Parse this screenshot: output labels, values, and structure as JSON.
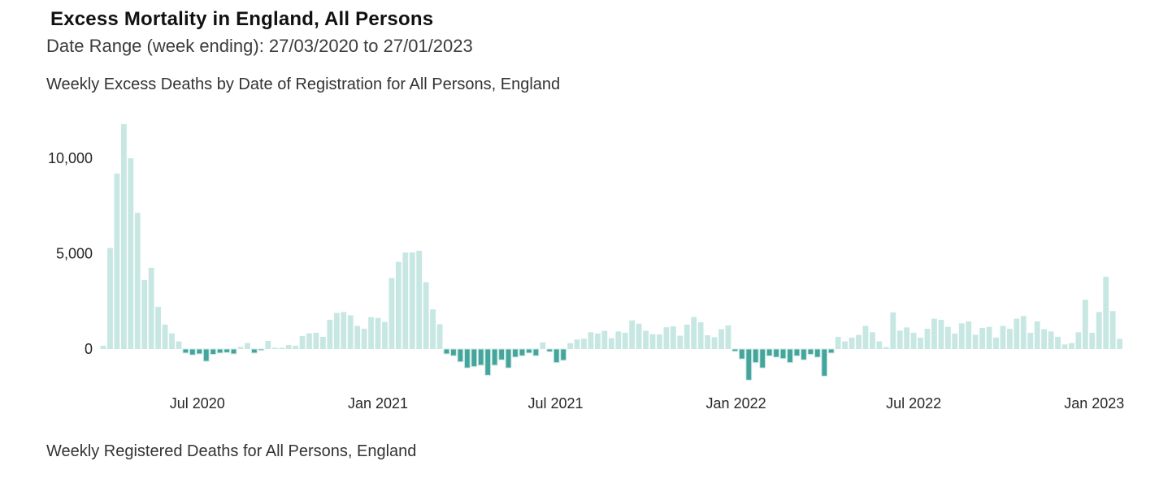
{
  "header": {
    "title": "Excess Mortality in England, All Persons",
    "date_range": "Date Range (week ending): 27/03/2020 to 27/01/2023"
  },
  "sections": {
    "excess_chart_title": "Weekly Excess Deaths by Date of Registration for All Persons, England",
    "registered_chart_title": "Weekly Registered Deaths for All Persons, England"
  },
  "colors": {
    "positive_bar": "#c7e7e3",
    "negative_bar": "#44a59c",
    "negative_bar_outline": "#cfe9e5",
    "axis_text": "#262626",
    "background": "#ffffff"
  },
  "chart_data": {
    "type": "bar",
    "title": "Weekly Excess Deaths by Date of Registration for All Persons, England",
    "x_axis": {
      "start_week_ending": "27/03/2020",
      "end_week_ending": "27/01/2023",
      "frequency": "weekly",
      "num_weeks": 149,
      "tick_labels": [
        "Jul 2020",
        "Jan 2021",
        "Jul 2021",
        "Jan 2022",
        "Jul 2022",
        "Jan 2023"
      ],
      "tick_week_offsets": [
        13.71,
        40.0,
        65.86,
        92.14,
        118.0,
        144.29
      ]
    },
    "y_axis": {
      "label": "",
      "ticks": [
        {
          "value": 0,
          "label": "0"
        },
        {
          "value": 5000,
          "label": "5,000"
        },
        {
          "value": 10000,
          "label": "10,000"
        }
      ],
      "ylim": [
        -2000,
        12000
      ]
    },
    "grid": false,
    "legend": false,
    "values": [
      170,
      5300,
      9200,
      11790,
      10000,
      7140,
      3620,
      4260,
      2210,
      1280,
      820,
      400,
      -210,
      -310,
      -255,
      -640,
      -280,
      -210,
      -185,
      -255,
      110,
      310,
      -210,
      -70,
      425,
      70,
      70,
      210,
      170,
      680,
      820,
      850,
      640,
      1530,
      1890,
      1940,
      1770,
      1210,
      1060,
      1670,
      1630,
      1420,
      3720,
      4570,
      5060,
      5060,
      5150,
      3500,
      2080,
      1300,
      -255,
      -355,
      -670,
      -990,
      -920,
      -850,
      -1375,
      -850,
      -570,
      -990,
      -425,
      -355,
      -210,
      -355,
      350,
      -140,
      -710,
      -595,
      310,
      500,
      540,
      880,
      810,
      950,
      570,
      920,
      850,
      1500,
      1330,
      960,
      780,
      770,
      1140,
      1190,
      700,
      1280,
      1680,
      1400,
      720,
      620,
      1040,
      1230,
      -120,
      -520,
      -1630,
      -710,
      -990,
      -360,
      -430,
      -500,
      -710,
      -360,
      -570,
      -280,
      -430,
      -1420,
      -210,
      640,
      400,
      595,
      740,
      1210,
      880,
      400,
      100,
      1920,
      965,
      1130,
      850,
      595,
      1060,
      1590,
      1530,
      1160,
      810,
      1350,
      1450,
      750,
      1110,
      1160,
      600,
      1210,
      1060,
      1590,
      1730,
      850,
      1450,
      1040,
      920,
      640,
      240,
      310,
      880,
      2580,
      850,
      1940,
      3790,
      1990,
      540
    ]
  }
}
